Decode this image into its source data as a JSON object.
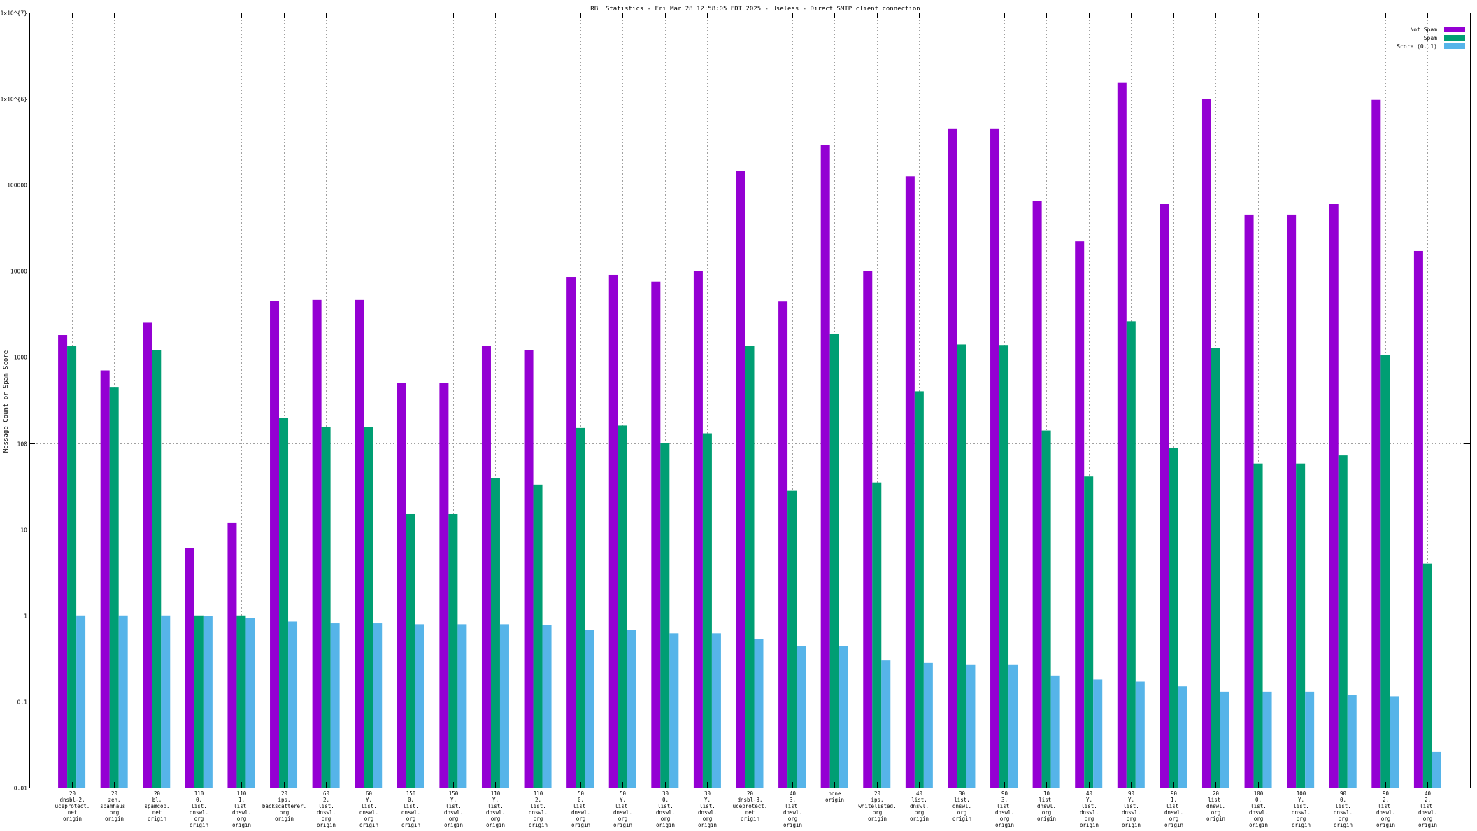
{
  "chart_data": {
    "type": "bar",
    "title": "RBL Statistics - Fri Mar 28 12:58:05 EDT 2025 - Useless - Direct SMTP client connection",
    "ylabel": "Message Count or Spam Score",
    "xlabel": "",
    "yscale": "log",
    "ylim": [
      0.01,
      10000000
    ],
    "yticks": [
      {
        "v": 10000000,
        "label": "1x10^{7}"
      },
      {
        "v": 1000000,
        "label": "1x10^{6}"
      },
      {
        "v": 100000,
        "label": "100000"
      },
      {
        "v": 10000,
        "label": "10000"
      },
      {
        "v": 1000,
        "label": "1000"
      },
      {
        "v": 100,
        "label": "100"
      },
      {
        "v": 10,
        "label": "10"
      },
      {
        "v": 1,
        "label": "1"
      },
      {
        "v": 0.1,
        "label": "0.1"
      },
      {
        "v": 0.01,
        "label": "0.01"
      }
    ],
    "grid": true,
    "legend_position": "top-right",
    "categories": [
      [
        "20",
        "dnsbl-2.",
        "uceprotect.",
        "net",
        "origin"
      ],
      [
        "20",
        "zen.",
        "spamhaus.",
        "org",
        "origin"
      ],
      [
        "20",
        "bl.",
        "spamcop.",
        "net",
        "origin"
      ],
      [
        "110",
        "0.",
        "list.",
        "dnswl.",
        "org",
        "origin"
      ],
      [
        "110",
        "1.",
        "list.",
        "dnswl.",
        "org",
        "origin"
      ],
      [
        "20",
        "ips.",
        "backscatterer.",
        "org",
        "origin"
      ],
      [
        "60",
        "2.",
        "list.",
        "dnswl.",
        "org",
        "origin"
      ],
      [
        "60",
        "Y.",
        "list.",
        "dnswl.",
        "org",
        "origin"
      ],
      [
        "150",
        "0.",
        "list.",
        "dnswl.",
        "org",
        "origin"
      ],
      [
        "150",
        "Y.",
        "list.",
        "dnswl.",
        "org",
        "origin"
      ],
      [
        "110",
        "Y.",
        "list.",
        "dnswl.",
        "org",
        "origin"
      ],
      [
        "110",
        "2.",
        "list.",
        "dnswl.",
        "org",
        "origin"
      ],
      [
        "50",
        "0.",
        "list.",
        "dnswl.",
        "org",
        "origin"
      ],
      [
        "50",
        "Y.",
        "list.",
        "dnswl.",
        "org",
        "origin"
      ],
      [
        "30",
        "0.",
        "list.",
        "dnswl.",
        "org",
        "origin"
      ],
      [
        "30",
        "Y.",
        "list.",
        "dnswl.",
        "org",
        "origin"
      ],
      [
        "20",
        "dnsbl-3.",
        "uceprotect.",
        "net",
        "origin"
      ],
      [
        "40",
        "3.",
        "list.",
        "dnswl.",
        "org",
        "origin"
      ],
      [
        "none",
        "origin"
      ],
      [
        "20",
        "ips.",
        "whitelisted.",
        "org",
        "origin"
      ],
      [
        "40",
        "list.",
        "dnswl.",
        "org",
        "origin"
      ],
      [
        "30",
        "list.",
        "dnswl.",
        "org",
        "origin"
      ],
      [
        "90",
        "3.",
        "list.",
        "dnswl.",
        "org",
        "origin"
      ],
      [
        "10",
        "list.",
        "dnswl.",
        "org",
        "origin"
      ],
      [
        "40",
        "Y.",
        "list.",
        "dnswl.",
        "org",
        "origin"
      ],
      [
        "90",
        "Y.",
        "list.",
        "dnswl.",
        "org",
        "origin"
      ],
      [
        "90",
        "1.",
        "list.",
        "dnswl.",
        "org",
        "origin"
      ],
      [
        "20",
        "list.",
        "dnswl.",
        "org",
        "origin"
      ],
      [
        "100",
        "0.",
        "list.",
        "dnswl.",
        "org",
        "origin"
      ],
      [
        "100",
        "Y.",
        "list.",
        "dnswl.",
        "org",
        "origin"
      ],
      [
        "90",
        "0.",
        "list.",
        "dnswl.",
        "org",
        "origin"
      ],
      [
        "90",
        "2.",
        "list.",
        "dnswl.",
        "org",
        "origin"
      ],
      [
        "40",
        "2.",
        "list.",
        "dnswl.",
        "org",
        "origin"
      ]
    ],
    "series": [
      {
        "name": "Not Spam",
        "color": "#9400d3",
        "values": [
          1800,
          700,
          2500,
          6,
          12,
          4500,
          4600,
          4600,
          500,
          500,
          1350,
          1200,
          8500,
          9000,
          7500,
          10000,
          145000,
          4400,
          290000,
          10000,
          125000,
          450000,
          450000,
          65000,
          22000,
          1550000,
          60000,
          990000,
          45000,
          45000,
          60000,
          970000,
          17000
        ]
      },
      {
        "name": "Spam",
        "color": "#009e73",
        "values": [
          1350,
          450,
          1200,
          1,
          1,
          195,
          155,
          155,
          15,
          15,
          39,
          33,
          150,
          160,
          100,
          130,
          1350,
          28,
          1850,
          35,
          400,
          1400,
          1380,
          140,
          41,
          2600,
          88,
          1270,
          58,
          58,
          72,
          1050,
          4
        ]
      },
      {
        "name": "Score (0..1)",
        "color": "#56b4e9",
        "values": [
          1.0,
          1.0,
          1.0,
          0.98,
          0.93,
          0.85,
          0.81,
          0.81,
          0.79,
          0.79,
          0.79,
          0.77,
          0.68,
          0.68,
          0.62,
          0.62,
          0.53,
          0.44,
          0.44,
          0.3,
          0.28,
          0.27,
          0.27,
          0.2,
          0.18,
          0.17,
          0.15,
          0.13,
          0.13,
          0.13,
          0.12,
          0.115,
          0.026
        ]
      }
    ]
  }
}
